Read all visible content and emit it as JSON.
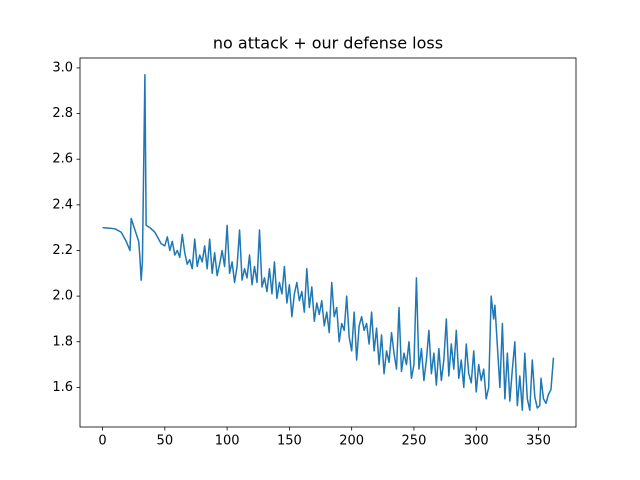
{
  "chart_data": {
    "type": "line",
    "title": "no attack + our defense loss",
    "x": [
      0,
      5,
      10,
      15,
      19,
      22,
      23,
      26,
      29,
      30,
      31,
      32,
      34,
      35,
      38,
      42,
      47,
      50,
      52,
      54,
      56,
      58,
      60,
      62,
      64,
      66,
      68,
      70,
      72,
      74,
      76,
      78,
      80,
      82,
      84,
      86,
      88,
      90,
      92,
      94,
      96,
      98,
      100,
      102,
      104,
      106,
      108,
      110,
      112,
      114,
      116,
      118,
      120,
      122,
      124,
      126,
      128,
      130,
      132,
      134,
      136,
      138,
      140,
      142,
      144,
      146,
      148,
      150,
      152,
      154,
      156,
      158,
      160,
      162,
      164,
      166,
      168,
      170,
      172,
      174,
      176,
      178,
      180,
      182,
      184,
      186,
      188,
      190,
      192,
      194,
      196,
      198,
      200,
      202,
      204,
      206,
      208,
      210,
      212,
      214,
      216,
      218,
      220,
      222,
      224,
      226,
      228,
      230,
      232,
      234,
      236,
      238,
      240,
      242,
      244,
      246,
      248,
      250,
      252,
      254,
      256,
      258,
      260,
      262,
      264,
      266,
      268,
      270,
      272,
      274,
      276,
      278,
      280,
      282,
      284,
      286,
      288,
      290,
      292,
      294,
      296,
      298,
      300,
      302,
      304,
      306,
      308,
      310,
      312,
      314,
      315,
      317,
      319,
      321,
      323,
      325,
      327,
      329,
      331,
      333,
      335,
      337,
      339,
      341,
      343,
      345,
      347,
      349,
      351,
      352,
      354,
      356,
      358,
      360,
      362
    ],
    "series": [
      {
        "color": "#1f77b4",
        "values": [
          2.3,
          2.298,
          2.295,
          2.28,
          2.24,
          2.2,
          2.34,
          2.29,
          2.24,
          2.17,
          2.07,
          2.15,
          2.97,
          2.31,
          2.3,
          2.28,
          2.23,
          2.22,
          2.26,
          2.2,
          2.24,
          2.18,
          2.2,
          2.17,
          2.27,
          2.19,
          2.14,
          2.16,
          2.12,
          2.25,
          2.13,
          2.18,
          2.15,
          2.22,
          2.12,
          2.25,
          2.1,
          2.19,
          2.09,
          2.14,
          2.2,
          2.13,
          2.31,
          2.1,
          2.15,
          2.06,
          2.13,
          2.29,
          2.07,
          2.12,
          2.08,
          2.18,
          2.05,
          2.13,
          2.06,
          2.29,
          2.04,
          2.08,
          2.02,
          2.12,
          2.01,
          2.15,
          1.99,
          2.06,
          2.01,
          2.13,
          1.97,
          2.05,
          1.91,
          2.01,
          2.06,
          1.98,
          2.02,
          1.93,
          2.12,
          1.95,
          2.04,
          1.89,
          1.97,
          1.92,
          1.98,
          1.87,
          1.93,
          1.84,
          2.06,
          1.91,
          1.95,
          1.8,
          1.88,
          1.85,
          2.0,
          1.82,
          1.76,
          1.93,
          1.72,
          1.87,
          1.91,
          1.85,
          1.88,
          1.79,
          1.93,
          1.76,
          1.86,
          1.7,
          1.83,
          1.66,
          1.76,
          1.71,
          1.84,
          1.75,
          1.68,
          1.95,
          1.67,
          1.75,
          1.7,
          1.8,
          1.64,
          1.7,
          2.08,
          1.68,
          1.77,
          1.63,
          1.72,
          1.85,
          1.66,
          1.75,
          1.61,
          1.77,
          1.63,
          1.72,
          1.9,
          1.65,
          1.79,
          1.68,
          1.85,
          1.64,
          1.72,
          1.6,
          1.79,
          1.66,
          1.62,
          1.76,
          1.58,
          1.7,
          1.63,
          1.68,
          1.55,
          1.6,
          2.0,
          1.9,
          1.96,
          1.78,
          1.6,
          1.88,
          1.55,
          1.75,
          1.54,
          1.68,
          1.8,
          1.52,
          1.65,
          1.5,
          1.75,
          1.55,
          1.5,
          1.72,
          1.56,
          1.51,
          1.52,
          1.64,
          1.55,
          1.53,
          1.57,
          1.59,
          1.73
        ]
      }
    ],
    "xlim": [
      -18.1,
      380.1
    ],
    "xticks": [
      0,
      50,
      100,
      150,
      200,
      250,
      300,
      350
    ],
    "ylim": [
      1.4265,
      3.0435
    ],
    "yticks": [
      1.6,
      1.8,
      {
        "value": 2,
        "label": "2.0"
      },
      2.2,
      2.4,
      2.6,
      2.8,
      {
        "value": 3,
        "label": "3.0"
      }
    ]
  }
}
